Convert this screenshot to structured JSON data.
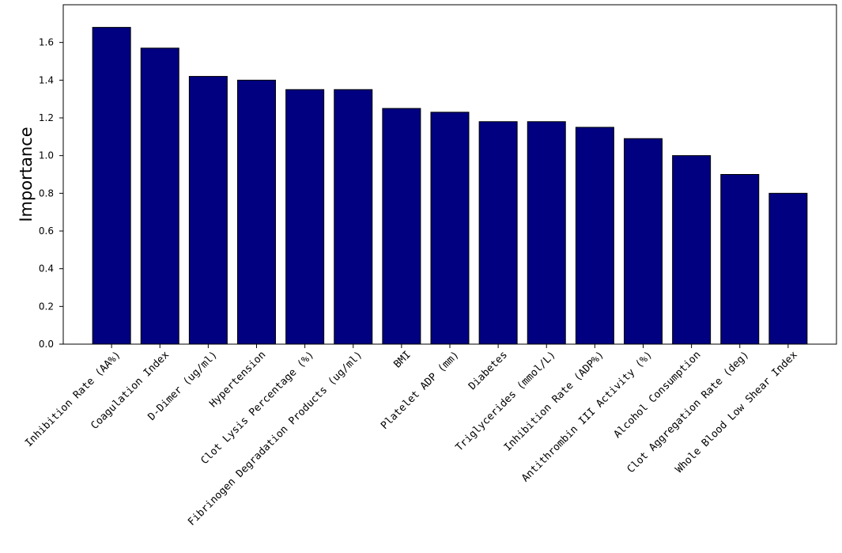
{
  "chart_data": {
    "type": "bar",
    "title": "",
    "xlabel": "",
    "ylabel": "Importance",
    "ylim": [
      0,
      1.8
    ],
    "yticks": [
      "0.0",
      "0.2",
      "0.4",
      "0.6",
      "0.8",
      "1.0",
      "1.2",
      "1.4",
      "1.6"
    ],
    "grid": false,
    "bar_color": "#000080",
    "bar_edge_color": "#000000",
    "categories": [
      "Inhibition Rate (AA%)",
      "Coagulation Index",
      "D-Dimer (ug/ml)",
      "Hypertension",
      "Clot Lysis Percentage (%)",
      "Fibrinogen Degradation Products (ug/ml)",
      "BMI",
      "Platelet ADP (mm)",
      "Diabetes",
      "Triglycerides (mmol/L)",
      "Inhibition Rate (ADP%)",
      "Antithrombin III Activity (%)",
      "Alcohol Consumption",
      "Clot Aggregation Rate (deg)",
      "Whole Blood Low Shear Index"
    ],
    "values": [
      1.68,
      1.57,
      1.42,
      1.4,
      1.35,
      1.35,
      1.25,
      1.23,
      1.18,
      1.18,
      1.15,
      1.09,
      1.0,
      0.9,
      0.8
    ]
  }
}
